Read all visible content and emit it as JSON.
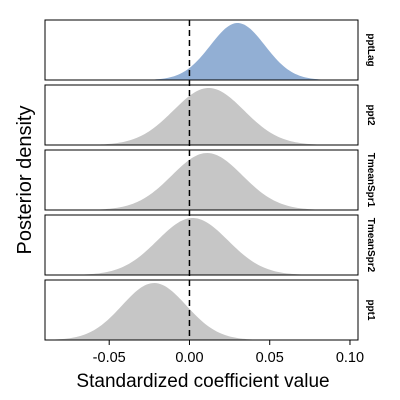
{
  "chart_data": {
    "type": "area",
    "xlabel": "Standardized coefficient value",
    "ylabel": "Posterior density",
    "xlim": [
      -0.09,
      0.105
    ],
    "x_ticks": [
      -0.05,
      0.0,
      0.05,
      0.1
    ],
    "x_tick_labels": [
      "-0.05",
      "0.00",
      "0.05",
      "0.10"
    ],
    "reference_line": {
      "x": 0.0,
      "style": "dashed"
    },
    "grid": false,
    "panels": [
      {
        "name": "pptLag",
        "mean": 0.03,
        "sd": 0.017,
        "color": "#92afd4"
      },
      {
        "name": "ppt2",
        "mean": 0.012,
        "sd": 0.022,
        "color": "#c6c6c6"
      },
      {
        "name": "TmeanSpr1",
        "mean": 0.011,
        "sd": 0.022,
        "color": "#c6c6c6"
      },
      {
        "name": "TmeanSpr2",
        "mean": 0.002,
        "sd": 0.022,
        "color": "#c6c6c6"
      },
      {
        "name": "ppt1",
        "mean": -0.022,
        "sd": 0.02,
        "color": "#c6c6c6"
      }
    ]
  }
}
